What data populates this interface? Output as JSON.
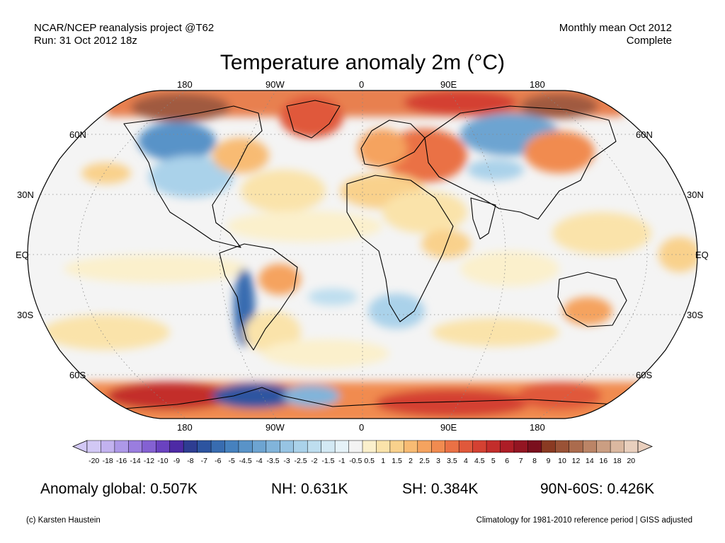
{
  "header": {
    "source_line1": "NCAR/NCEP reanalysis project @T62",
    "source_line2": "Run: 31 Oct 2012 18z",
    "period_line1": "Monthly mean Oct 2012",
    "period_line2": "Complete"
  },
  "title": "Temperature anomaly 2m (°C)",
  "map": {
    "projection": "robinson",
    "lon_labels_top": [
      "180",
      "90W",
      "0",
      "90E",
      "180"
    ],
    "lon_labels_bottom": [
      "180",
      "90W",
      "0",
      "90E",
      "180"
    ],
    "lat_labels_left": [
      "60N",
      "30N",
      "EQ",
      "30S",
      "60S"
    ],
    "lat_labels_right": [
      "60N",
      "30N",
      "EQ",
      "30S",
      "60S"
    ]
  },
  "colorbar": {
    "ticks": [
      "-20",
      "-18",
      "-16",
      "-14",
      "-12",
      "-10",
      "-9",
      "-8",
      "-7",
      "-6",
      "-5",
      "-4.5",
      "-4",
      "-3.5",
      "-3",
      "-2.5",
      "-2",
      "-1.5",
      "-1",
      "-0.5",
      "0.5",
      "1",
      "1.5",
      "2",
      "2.5",
      "3",
      "3.5",
      "4",
      "4.5",
      "5",
      "6",
      "7",
      "8",
      "9",
      "10",
      "12",
      "14",
      "16",
      "18",
      "20"
    ],
    "colors": [
      "#d2c8f5",
      "#c2b2ef",
      "#ad98e8",
      "#9a7ddf",
      "#8461d2",
      "#6a42c0",
      "#4d2aa5",
      "#2e3d92",
      "#2d54a0",
      "#386cb0",
      "#4681be",
      "#5993c8",
      "#6da4d1",
      "#81b4da",
      "#97c4e3",
      "#aad2ea",
      "#bedeef",
      "#d3e9f4",
      "#e5f2f8",
      "#f3f3f3",
      "#fbf0cc",
      "#fae3aa",
      "#f9d18c",
      "#f8bb73",
      "#f5a35f",
      "#f18b50",
      "#ea7145",
      "#e0583b",
      "#d44132",
      "#c32d2b",
      "#ad1d26",
      "#931522",
      "#7a0f1d",
      "#8a3a22",
      "#9a5236",
      "#ab6b4d",
      "#bb8466",
      "#cb9e82",
      "#dbb8a0",
      "#e9cfbd"
    ]
  },
  "stats": {
    "global": "Anomaly global: 0.507K",
    "nh": "NH: 0.631K",
    "sh": "SH: 0.384K",
    "arctic": "90N-60S: 0.426K"
  },
  "footer": {
    "credit": "(c) Karsten Haustein",
    "note": "Climatology for 1981-2010 reference period | GISS adjusted"
  }
}
